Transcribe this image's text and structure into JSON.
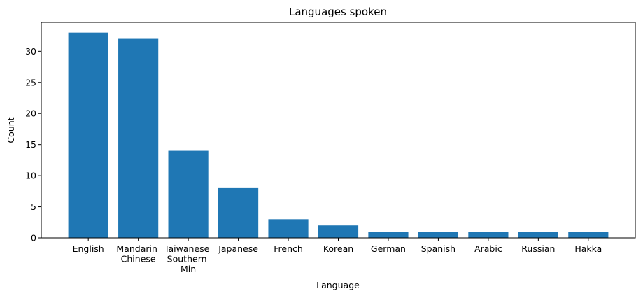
{
  "chart_data": {
    "type": "bar",
    "title": "Languages spoken",
    "x_label": "Language",
    "y_label": "Count",
    "categories": [
      "English",
      "Mandarin Chinese",
      "Taiwanese Southern Min",
      "Japanese",
      "French",
      "Korean",
      "German",
      "Spanish",
      "Arabic",
      "Russian",
      "Hakka"
    ],
    "values": [
      33,
      32,
      14,
      8,
      3,
      2,
      1,
      1,
      1,
      1,
      1
    ],
    "color": "#1f77b4",
    "ylim": [
      0,
      34.65
    ],
    "yticks": [
      0,
      5,
      10,
      15,
      20,
      25,
      30
    ],
    "grid": false
  }
}
